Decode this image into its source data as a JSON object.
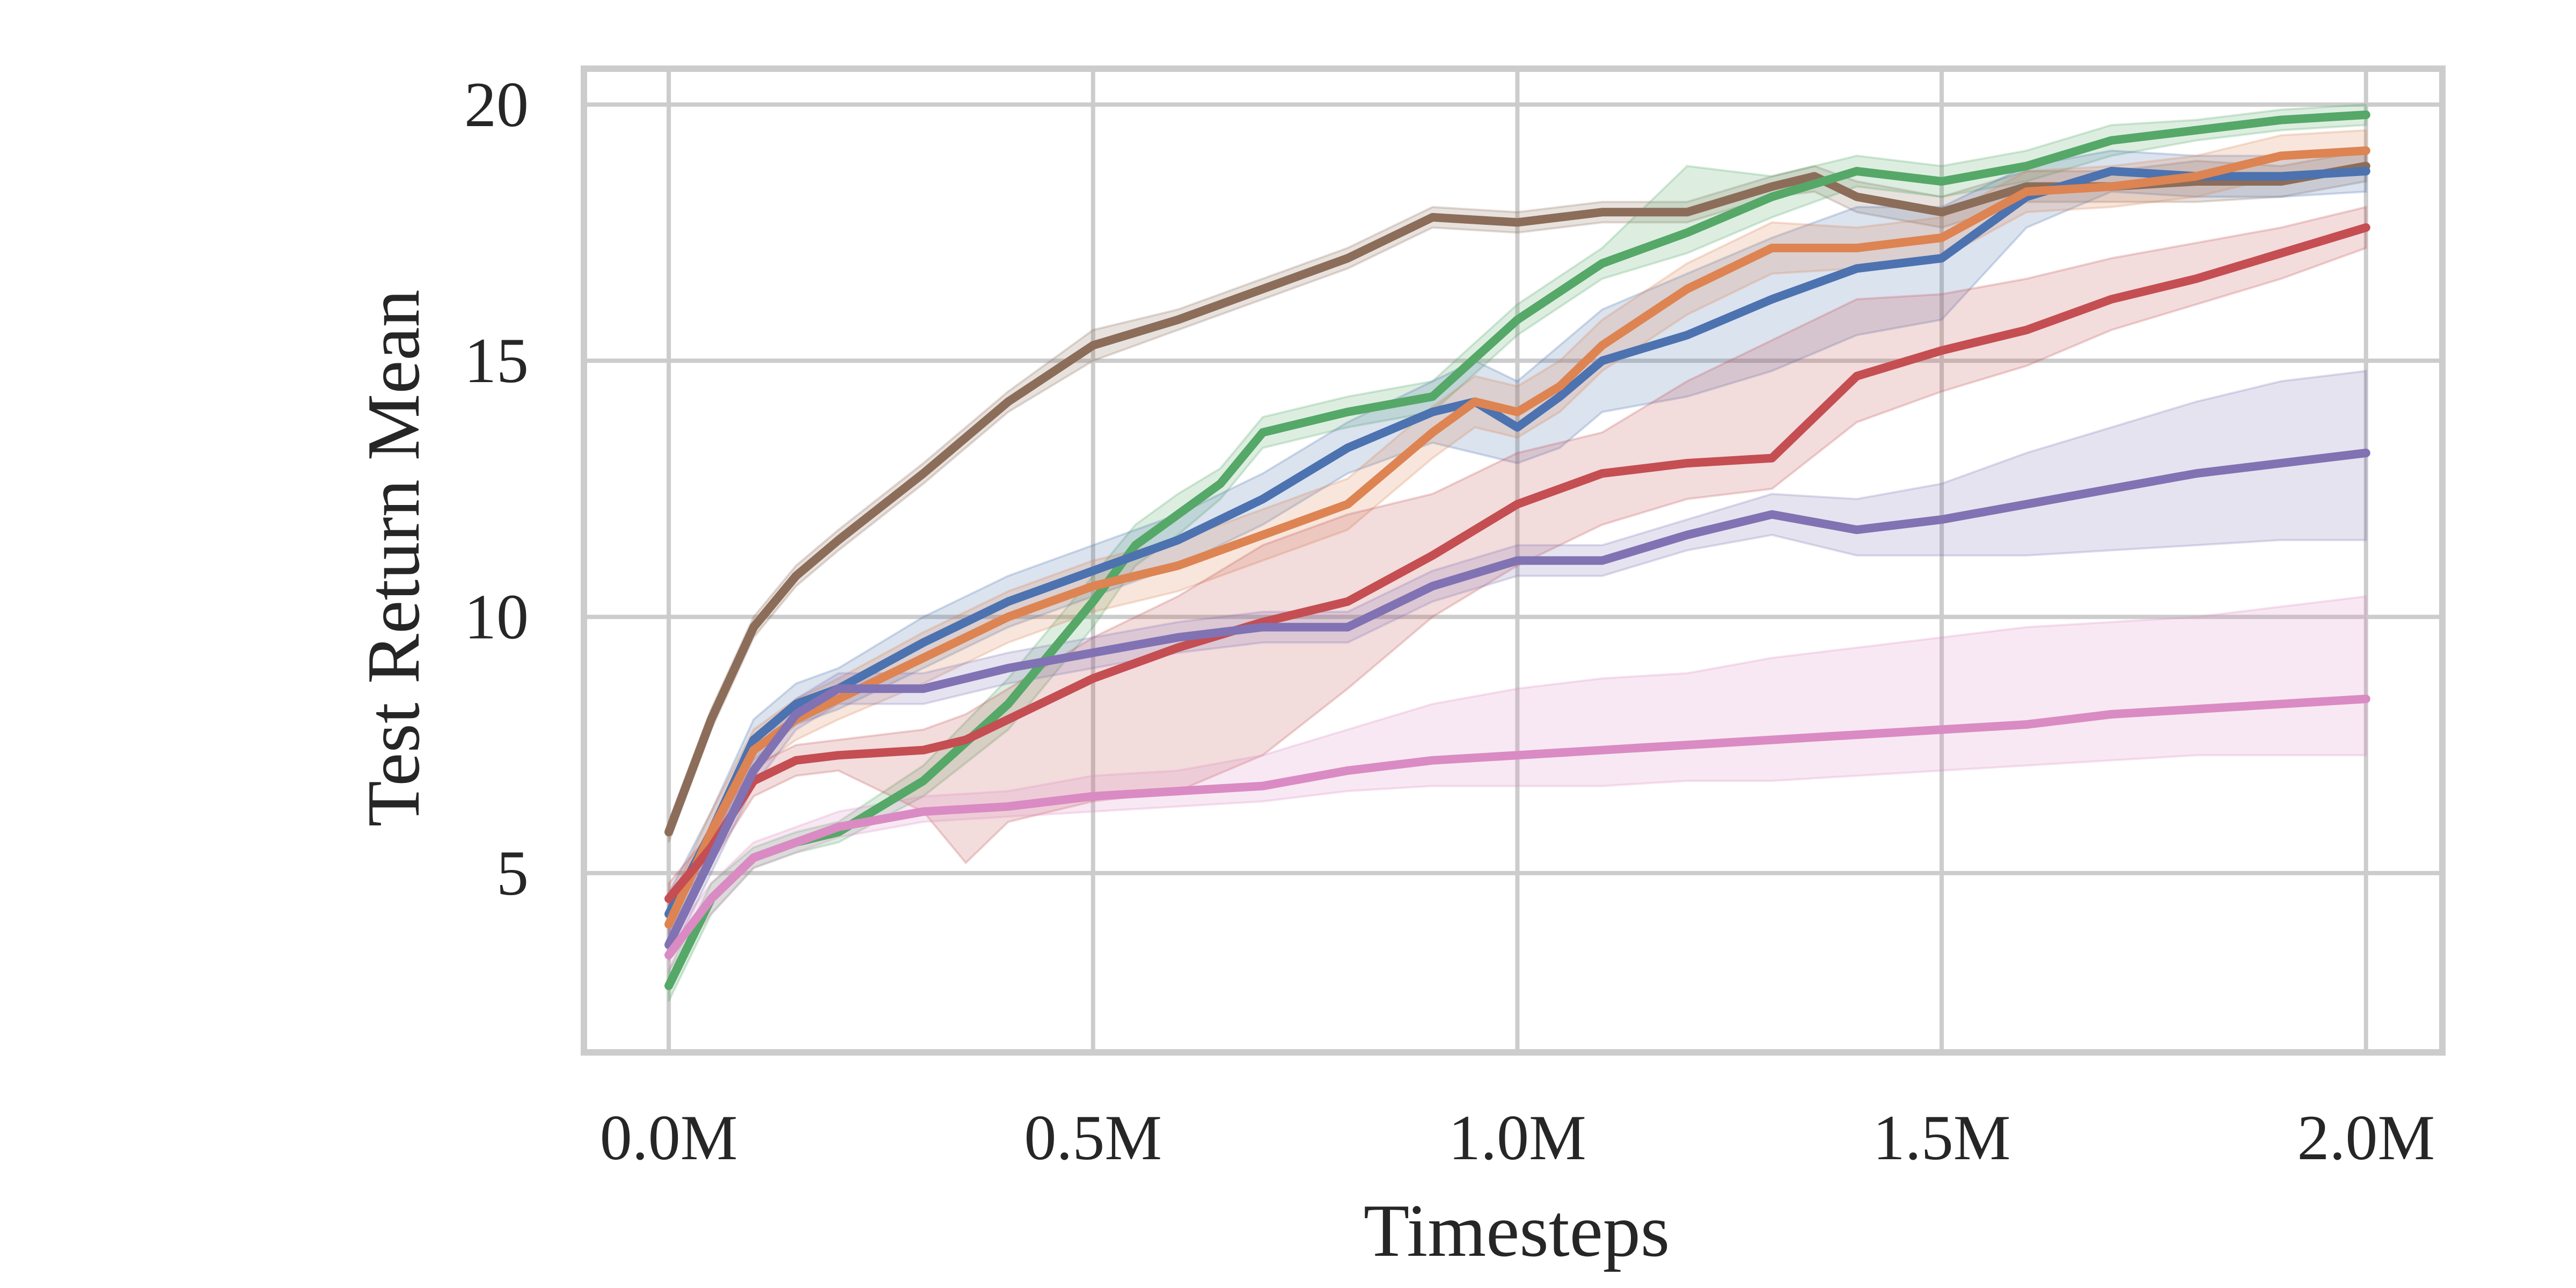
{
  "chart_data": {
    "type": "line",
    "title": "",
    "xlabel": "Timesteps",
    "ylabel": "Test Return Mean",
    "xlim": [
      -0.1,
      2.09
    ],
    "ylim": [
      1.5,
      20.7
    ],
    "xticks": [
      0,
      0.5,
      1.0,
      1.5,
      2.0
    ],
    "xtick_labels": [
      "0.0M",
      "0.5M",
      "1.0M",
      "1.5M",
      "2.0M"
    ],
    "yticks": [
      5,
      10,
      15,
      20
    ],
    "ytick_labels": [
      "5",
      "10",
      "15",
      "20"
    ],
    "grid": true,
    "legend": "none",
    "x_units": "millions of timesteps",
    "series": [
      {
        "color": "#8c6d5a",
        "x": [
          0,
          0.05,
          0.1,
          0.15,
          0.2,
          0.3,
          0.4,
          0.5,
          0.6,
          0.7,
          0.8,
          0.9,
          1.0,
          1.1,
          1.2,
          1.3,
          1.35,
          1.4,
          1.5,
          1.6,
          1.7,
          1.8,
          1.9,
          2.0
        ],
        "values": [
          5.8,
          8.0,
          9.8,
          10.8,
          11.5,
          12.8,
          14.2,
          15.3,
          15.8,
          16.4,
          17.0,
          17.8,
          17.7,
          17.9,
          17.9,
          18.4,
          18.6,
          18.2,
          17.9,
          18.4,
          18.4,
          18.5,
          18.5,
          18.8
        ],
        "lower": [
          5.6,
          7.8,
          9.6,
          10.6,
          11.3,
          12.6,
          14.0,
          15.0,
          15.6,
          16.2,
          16.8,
          17.6,
          17.5,
          17.7,
          17.7,
          18.2,
          18.3,
          17.9,
          17.6,
          18.1,
          18.1,
          18.1,
          18.2,
          18.5
        ],
        "upper": [
          6.0,
          8.2,
          10.0,
          11.0,
          11.7,
          13.0,
          14.4,
          15.6,
          16.0,
          16.6,
          17.2,
          18.0,
          17.9,
          18.1,
          18.1,
          18.6,
          18.8,
          18.5,
          18.2,
          18.7,
          18.7,
          18.9,
          18.8,
          19.1
        ]
      },
      {
        "color": "#55a868",
        "x": [
          0,
          0.05,
          0.1,
          0.15,
          0.2,
          0.3,
          0.4,
          0.5,
          0.55,
          0.6,
          0.65,
          0.7,
          0.8,
          0.9,
          1.0,
          1.1,
          1.2,
          1.3,
          1.4,
          1.5,
          1.6,
          1.7,
          1.8,
          1.9,
          2.0
        ],
        "values": [
          2.8,
          4.5,
          5.3,
          5.6,
          5.8,
          6.8,
          8.3,
          10.3,
          11.4,
          12.0,
          12.6,
          13.6,
          14.0,
          14.3,
          15.8,
          16.9,
          17.5,
          18.2,
          18.7,
          18.5,
          18.8,
          19.3,
          19.5,
          19.7,
          19.8
        ],
        "lower": [
          2.5,
          4.2,
          5.1,
          5.4,
          5.6,
          6.5,
          7.8,
          9.8,
          11.0,
          11.6,
          12.3,
          13.3,
          13.7,
          14.0,
          15.5,
          16.6,
          17.1,
          17.8,
          18.4,
          18.2,
          18.5,
          19.0,
          19.3,
          19.5,
          19.6
        ],
        "upper": [
          3.1,
          4.8,
          5.5,
          5.8,
          6.0,
          7.1,
          8.8,
          10.8,
          11.8,
          12.4,
          12.9,
          13.9,
          14.3,
          14.6,
          16.1,
          17.2,
          18.8,
          18.6,
          19.0,
          18.8,
          19.1,
          19.6,
          19.7,
          19.9,
          20.0
        ]
      },
      {
        "color": "#4c72b0",
        "x": [
          0,
          0.05,
          0.1,
          0.15,
          0.2,
          0.3,
          0.4,
          0.5,
          0.6,
          0.7,
          0.8,
          0.9,
          0.95,
          1.0,
          1.05,
          1.1,
          1.2,
          1.3,
          1.4,
          1.5,
          1.6,
          1.7,
          1.8,
          1.9,
          2.0
        ],
        "values": [
          4.2,
          5.8,
          7.6,
          8.3,
          8.6,
          9.5,
          10.3,
          10.9,
          11.5,
          12.3,
          13.3,
          14.0,
          14.2,
          13.7,
          14.3,
          15.0,
          15.5,
          16.2,
          16.8,
          17.0,
          18.2,
          18.7,
          18.6,
          18.6,
          18.7
        ],
        "lower": [
          3.8,
          5.4,
          7.2,
          7.9,
          8.2,
          9.0,
          9.8,
          10.4,
          11.0,
          11.8,
          12.8,
          13.4,
          13.2,
          13.0,
          13.3,
          14.0,
          14.3,
          14.8,
          15.5,
          15.8,
          17.6,
          18.3,
          18.2,
          18.2,
          18.3
        ],
        "upper": [
          4.6,
          6.2,
          8.0,
          8.7,
          9.0,
          10.0,
          10.8,
          11.4,
          12.0,
          12.8,
          13.8,
          14.6,
          15.0,
          14.6,
          15.3,
          16.0,
          16.7,
          17.4,
          18.0,
          18.0,
          18.8,
          19.1,
          19.0,
          19.0,
          19.1
        ]
      },
      {
        "color": "#dd8452",
        "x": [
          0,
          0.05,
          0.1,
          0.15,
          0.2,
          0.3,
          0.4,
          0.5,
          0.6,
          0.7,
          0.8,
          0.9,
          0.95,
          1.0,
          1.05,
          1.1,
          1.2,
          1.3,
          1.4,
          1.5,
          1.6,
          1.7,
          1.8,
          1.9,
          2.0
        ],
        "values": [
          4.0,
          5.8,
          7.4,
          8.0,
          8.4,
          9.2,
          10.0,
          10.6,
          11.0,
          11.6,
          12.2,
          13.6,
          14.2,
          14.0,
          14.5,
          15.3,
          16.4,
          17.2,
          17.2,
          17.4,
          18.3,
          18.4,
          18.6,
          19.0,
          19.1
        ],
        "lower": [
          3.6,
          5.4,
          7.0,
          7.6,
          8.0,
          8.7,
          9.5,
          10.1,
          10.5,
          11.1,
          11.7,
          13.1,
          13.7,
          13.5,
          14.0,
          14.8,
          15.9,
          16.7,
          16.8,
          17.0,
          17.9,
          18.0,
          18.2,
          18.6,
          18.7
        ],
        "upper": [
          4.4,
          6.2,
          7.8,
          8.4,
          8.8,
          9.7,
          10.5,
          11.1,
          11.5,
          12.1,
          12.7,
          14.1,
          14.7,
          14.5,
          15.0,
          15.8,
          16.9,
          17.7,
          17.6,
          17.8,
          18.7,
          18.8,
          19.0,
          19.4,
          19.5
        ]
      },
      {
        "color": "#c44e52",
        "x": [
          0,
          0.05,
          0.1,
          0.15,
          0.2,
          0.3,
          0.35,
          0.4,
          0.5,
          0.6,
          0.7,
          0.8,
          0.9,
          1.0,
          1.1,
          1.2,
          1.3,
          1.4,
          1.5,
          1.6,
          1.7,
          1.8,
          1.9,
          2.0
        ],
        "values": [
          4.5,
          5.5,
          6.8,
          7.2,
          7.3,
          7.4,
          7.6,
          8.0,
          8.8,
          9.4,
          9.9,
          10.3,
          11.2,
          12.2,
          12.8,
          13.0,
          13.1,
          14.7,
          15.2,
          15.6,
          16.2,
          16.6,
          17.1,
          17.6
        ],
        "lower": [
          4.2,
          5.2,
          6.5,
          6.9,
          7.0,
          6.2,
          5.2,
          6.0,
          6.4,
          6.6,
          7.3,
          8.6,
          10.0,
          11.0,
          11.8,
          12.3,
          12.5,
          13.8,
          14.4,
          14.9,
          15.6,
          16.1,
          16.6,
          17.2
        ],
        "upper": [
          4.8,
          5.8,
          7.1,
          7.5,
          7.6,
          7.8,
          8.1,
          8.6,
          9.6,
          10.4,
          11.4,
          12.0,
          12.4,
          13.2,
          13.6,
          14.6,
          15.4,
          16.2,
          16.3,
          16.6,
          17.0,
          17.3,
          17.6,
          18.0
        ]
      },
      {
        "color": "#8172b3",
        "x": [
          0,
          0.05,
          0.1,
          0.15,
          0.2,
          0.3,
          0.4,
          0.5,
          0.6,
          0.7,
          0.8,
          0.9,
          1.0,
          1.1,
          1.2,
          1.3,
          1.4,
          1.5,
          1.6,
          1.7,
          1.8,
          1.9,
          2.0
        ],
        "values": [
          3.6,
          5.3,
          7.0,
          8.1,
          8.6,
          8.6,
          9.0,
          9.3,
          9.6,
          9.8,
          9.8,
          10.6,
          11.1,
          11.1,
          11.6,
          12.0,
          11.7,
          11.9,
          12.2,
          12.5,
          12.8,
          13.0,
          13.2
        ],
        "lower": [
          3.3,
          5.0,
          6.7,
          7.8,
          8.3,
          8.3,
          8.7,
          9.0,
          9.3,
          9.5,
          9.5,
          10.3,
          10.8,
          10.8,
          11.3,
          11.6,
          11.2,
          11.2,
          11.2,
          11.3,
          11.4,
          11.5,
          11.5
        ],
        "upper": [
          3.9,
          5.6,
          7.3,
          8.4,
          8.9,
          8.9,
          9.3,
          9.6,
          9.9,
          10.1,
          10.1,
          10.9,
          11.4,
          11.4,
          11.9,
          12.4,
          12.3,
          12.6,
          13.2,
          13.7,
          14.2,
          14.6,
          14.8
        ]
      },
      {
        "color": "#da8bc3",
        "x": [
          0,
          0.05,
          0.1,
          0.2,
          0.3,
          0.4,
          0.5,
          0.6,
          0.7,
          0.8,
          0.9,
          1.0,
          1.1,
          1.2,
          1.3,
          1.4,
          1.5,
          1.6,
          1.7,
          1.8,
          1.9,
          2.0
        ],
        "values": [
          3.4,
          4.5,
          5.3,
          5.9,
          6.2,
          6.3,
          6.5,
          6.6,
          6.7,
          7.0,
          7.2,
          7.3,
          7.4,
          7.5,
          7.6,
          7.7,
          7.8,
          7.9,
          8.1,
          8.2,
          8.3,
          8.4
        ],
        "lower": [
          3.1,
          4.2,
          5.1,
          5.7,
          6.0,
          6.1,
          6.2,
          6.3,
          6.4,
          6.6,
          6.7,
          6.7,
          6.7,
          6.8,
          6.8,
          6.9,
          7.0,
          7.1,
          7.2,
          7.3,
          7.3,
          7.3
        ],
        "upper": [
          3.7,
          4.8,
          5.6,
          6.2,
          6.5,
          6.6,
          6.9,
          7.0,
          7.3,
          7.8,
          8.3,
          8.6,
          8.8,
          8.9,
          9.2,
          9.4,
          9.6,
          9.8,
          9.9,
          10.0,
          10.2,
          10.4
        ]
      }
    ]
  }
}
